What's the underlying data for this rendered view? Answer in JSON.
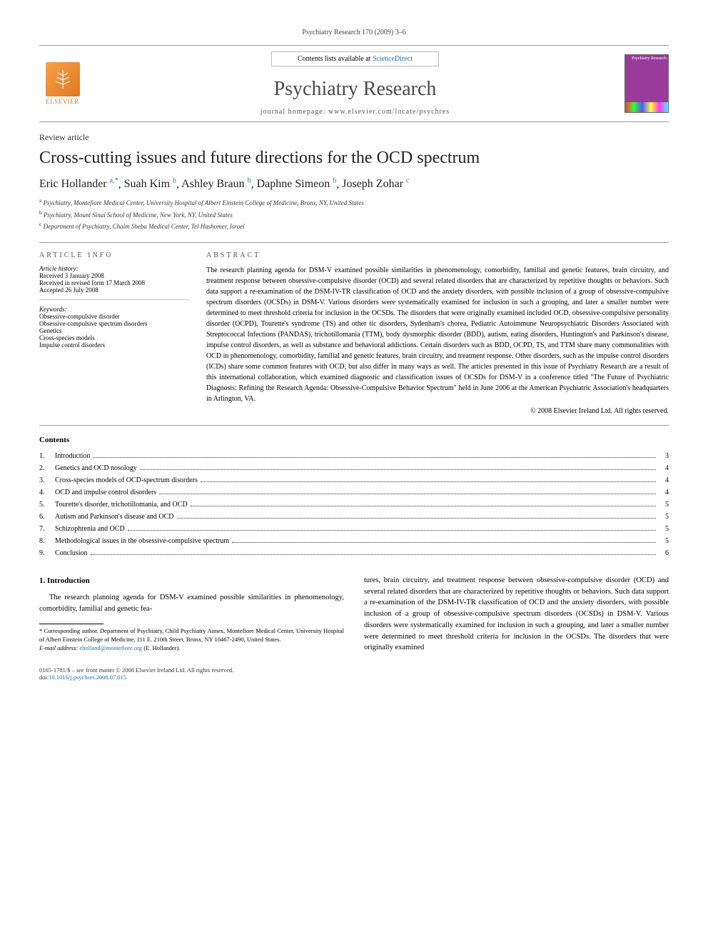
{
  "running_head": "Psychiatry Research 170 (2009) 3–6",
  "banner": {
    "contents_prefix": "Contents lists available at ",
    "contents_link": "ScienceDirect",
    "journal_title": "Psychiatry Research",
    "homepage_prefix": "journal homepage: ",
    "homepage_url": "www.elsevier.com/locate/psychres",
    "elsevier_label": "ELSEVIER",
    "cover_label": "Psychiatry Research"
  },
  "article_type": "Review article",
  "article_title": "Cross-cutting issues and future directions for the OCD spectrum",
  "authors_html": "Eric Hollander",
  "authors": [
    {
      "name": "Eric Hollander",
      "sup": "a,*"
    },
    {
      "name": "Suah Kim",
      "sup": "b"
    },
    {
      "name": "Ashley Braun",
      "sup": "b"
    },
    {
      "name": "Daphne Simeon",
      "sup": "b"
    },
    {
      "name": "Joseph Zohar",
      "sup": "c"
    }
  ],
  "affiliations": [
    {
      "sup": "a",
      "text": "Psychiatry, Montefiore Medical Center, University Hospital of Albert Einstein College of Medicine, Bronx, NY, United States"
    },
    {
      "sup": "b",
      "text": "Psychiatry, Mount Sinai School of Medicine, New York, NY, United States"
    },
    {
      "sup": "c",
      "text": "Department of Psychiatry, Chaim Sheba Medical Center, Tel Hashomer, Israel"
    }
  ],
  "article_info_heading": "ARTICLE INFO",
  "history": {
    "label": "Article history:",
    "received": "Received 3 January 2008",
    "revised": "Received in revised form 17 March 2008",
    "accepted": "Accepted 26 July 2008"
  },
  "keywords": {
    "label": "Keywords:",
    "items": [
      "Obsessive-compulsive disorder",
      "Obsessive-compulsive spectrum disorders",
      "Genetics",
      "Cross-species models",
      "Impulse control disorders"
    ]
  },
  "abstract_heading": "ABSTRACT",
  "abstract": "The research planning agenda for DSM-V examined possible similarities in phenomenology, comorbidity, familial and genetic features, brain circuitry, and treatment response between obsessive-compulsive disorder (OCD) and several related disorders that are characterized by repetitive thoughts or behaviors. Such data support a re-examination of the DSM-IV-TR classification of OCD and the anxiety disorders, with possible inclusion of a group of obsessive-compulsive spectrum disorders (OCSDs) in DSM-V. Various disorders were systematically examined for inclusion in such a grouping, and later a smaller number were determined to meet threshold criteria for inclusion in the OCSDs. The disorders that were originally examined included OCD, obsessive-compulsive personality disorder (OCPD), Tourette's syndrome (TS) and other tic disorders, Sydenham's chorea, Pediatric Autoimmune Neuropsychiatric Disorders Associated with Streptococcal Infections (PANDAS), trichotillomania (TTM), body dysmorphic disorder (BDD), autism, eating disorders, Huntington's and Parkinson's disease, impulse control disorders, as well as substance and behavioral addictions. Certain disorders such as BDD, OCPD, TS, and TTM share many commonalities with OCD in phenomenology, comorbidity, familial and genetic features, brain circuitry, and treatment response. Other disorders, such as the impulse control disorders (ICDs) share some common features with OCD, but also differ in many ways as well. The articles presented in this issue of Psychiatry Research are a result of this international collaboration, which examined diagnostic and classification issues of OCSDs for DSM-V in a conference titled \"The Future of Psychiatric Diagnosis: Refining the Research Agenda: Obsessive-Compulsive Behavior Spectrum\" held in June 2006 at the American Psychiatric Association's headquarters in Arlington, VA.",
  "copyright_line": "© 2008 Elsevier Ireland Ltd. All rights reserved.",
  "contents_heading": "Contents",
  "toc": [
    {
      "n": "1.",
      "t": "Introduction",
      "p": "3"
    },
    {
      "n": "2.",
      "t": "Genetics and OCD nosology",
      "p": "4"
    },
    {
      "n": "3.",
      "t": "Cross-species models of OCD-spectrum disorders",
      "p": "4"
    },
    {
      "n": "4.",
      "t": "OCD and impulse control disorders",
      "p": "4"
    },
    {
      "n": "5.",
      "t": "Tourette's disorder, trichotillomania, and OCD",
      "p": "5"
    },
    {
      "n": "6.",
      "t": "Autism and Parkinson's disease and OCD",
      "p": "5"
    },
    {
      "n": "7.",
      "t": "Schizophrenia and OCD",
      "p": "5"
    },
    {
      "n": "8.",
      "t": "Methodological issues in the obsessive-compulsive spectrum",
      "p": "5"
    },
    {
      "n": "9.",
      "t": "Conclusion",
      "p": "6"
    }
  ],
  "section1_heading": "1. Introduction",
  "col_left_p1": "The research planning agenda for DSM-V examined possible similarities in phenomenology, comorbidity, familial and genetic fea-",
  "col_right_p1": "tures, brain circuitry, and treatment response between obsessive-compulsive disorder (OCD) and several related disorders that are characterized by repetitive thoughts or behaviors. Such data support a re-examination of the DSM-IV-TR classification of OCD and the anxiety disorders, with possible inclusion of a group of obsessive-compulsive spectrum disorders (OCSDs) in DSM-V. Various disorders were systematically examined for inclusion in such a grouping, and later a smaller number were determined to meet threshold criteria for inclusion in the OCSDs. The disorders that were originally examined",
  "footnote": {
    "corr": "* Corresponding author. Department of Psychiatry, Child Psychiatry Annex, Montefiore Medical Center, University Hospital of Albert Einstein College of Medicine, 111 E. 210th Street, Bronx, NY 10467-2490, United States.",
    "email_label": "E-mail address:",
    "email": "eholland@montefiore.org",
    "email_suffix": " (E. Hollander)."
  },
  "footer": {
    "issn": "0165-1781/$ – see front matter © 2008 Elsevier Ireland Ltd. All rights reserved.",
    "doi_label": "doi:",
    "doi": "10.1016/j.psychres.2008.07.015"
  },
  "colors": {
    "link": "#1a6db5",
    "elsevier": "#e07820",
    "cover": "#9a3a9a",
    "rule": "#999999",
    "text": "#000000"
  }
}
